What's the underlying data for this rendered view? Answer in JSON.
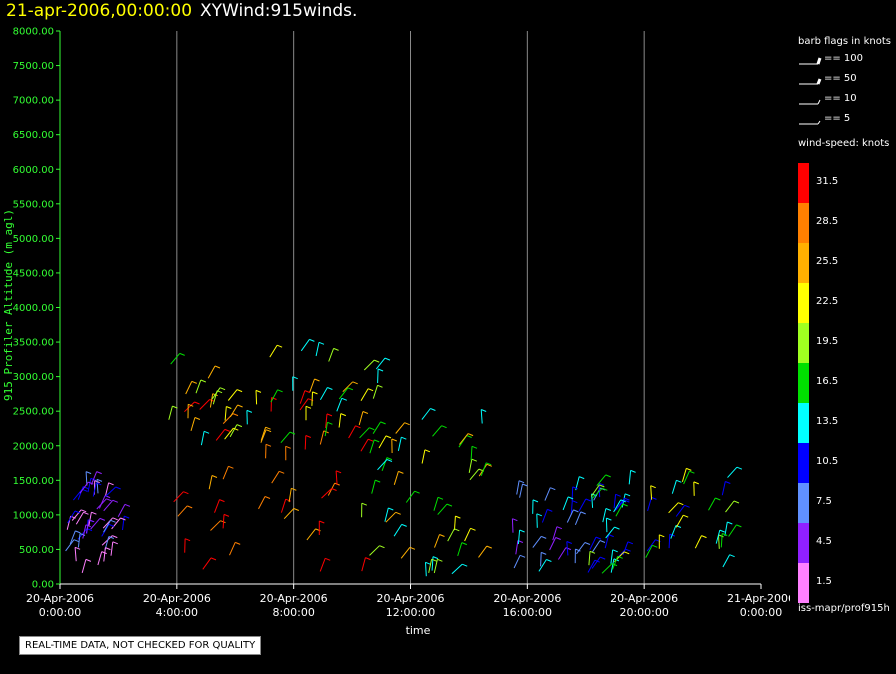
{
  "header": {
    "date": "21-apr-2006,00:00:00",
    "title": "XYWind:915winds."
  },
  "chart_data": {
    "type": "scatter",
    "subtype": "wind-barb time-height plot",
    "title": "XYWind:915winds.",
    "xlabel": "time",
    "ylabel": "915 Profiler Altitude (m agl)",
    "x_range_hours": [
      0,
      24
    ],
    "ylim": [
      0,
      8000
    ],
    "y_ticks": [
      "0.00",
      "500.00",
      "1000.00",
      "1500.00",
      "2000.00",
      "2500.00",
      "3000.00",
      "3500.00",
      "4000.00",
      "4500.00",
      "5000.00",
      "5500.00",
      "6000.00",
      "6500.00",
      "7000.00",
      "7500.00",
      "8000.00"
    ],
    "x_ticks": [
      {
        "date": "20-Apr-2006",
        "time": "0:00:00",
        "hour": 0
      },
      {
        "date": "20-Apr-2006",
        "time": "4:00:00",
        "hour": 4
      },
      {
        "date": "20-Apr-2006",
        "time": "8:00:00",
        "hour": 8
      },
      {
        "date": "20-Apr-2006",
        "time": "12:00:00",
        "hour": 12
      },
      {
        "date": "20-Apr-2006",
        "time": "16:00:00",
        "hour": 16
      },
      {
        "date": "20-Apr-2006",
        "time": "20:00:00",
        "hour": 20
      },
      {
        "date": "21-Apr-2006",
        "time": "0:00:00",
        "hour": 24
      }
    ],
    "grid_vertical_hours": [
      4,
      8,
      12,
      16,
      20
    ],
    "regions": [
      {
        "name": "early-light",
        "hours": [
          0,
          2.2
        ],
        "alt": [
          150,
          1500
        ],
        "speeds": [
          4.5,
          7.5,
          1.5,
          10.5
        ]
      },
      {
        "name": "strong-core",
        "hours": [
          3.6,
          10.5
        ],
        "alt": [
          100,
          2800
        ],
        "speeds": [
          31.5,
          31.5,
          28.5,
          25.5
        ]
      },
      {
        "name": "core-top",
        "hours": [
          3.6,
          11
        ],
        "alt": [
          2000,
          3400
        ],
        "speeds": [
          22.5,
          19.5,
          16.5,
          13.5,
          25.5
        ]
      },
      {
        "name": "decay",
        "hours": [
          10.3,
          14.5
        ],
        "alt": [
          100,
          2400
        ],
        "speeds": [
          22.5,
          19.5,
          16.5,
          25.5,
          13.5
        ]
      },
      {
        "name": "evening-light",
        "hours": [
          15.5,
          19.5
        ],
        "alt": [
          150,
          1400
        ],
        "speeds": [
          7.5,
          4.5,
          10.5,
          13.5
        ]
      },
      {
        "name": "night-moderate",
        "hours": [
          18,
          23
        ],
        "alt": [
          100,
          1600
        ],
        "speeds": [
          19.5,
          16.5,
          13.5,
          22.5,
          10.5
        ]
      }
    ],
    "legend_position": "right"
  },
  "legend": {
    "barb_title": "barb flags in knots",
    "barbs": [
      {
        "label": "== 100"
      },
      {
        "label": "== 50"
      },
      {
        "label": "== 10"
      },
      {
        "label": "== 5"
      }
    ],
    "speed_title": "wind-speed: knots",
    "speed_bins": [
      {
        "label": "31.5",
        "color": "#ff0000"
      },
      {
        "label": "28.5",
        "color": "#ff8000"
      },
      {
        "label": "25.5",
        "color": "#ffb000"
      },
      {
        "label": "22.5",
        "color": "#ffff00"
      },
      {
        "label": "19.5",
        "color": "#a0ff20"
      },
      {
        "label": "16.5",
        "color": "#00e000"
      },
      {
        "label": "13.5",
        "color": "#00ffff"
      },
      {
        "label": "10.5",
        "color": "#0000ff"
      },
      {
        "label": "7.5",
        "color": "#6090ff"
      },
      {
        "label": "4.5",
        "color": "#9020ff"
      },
      {
        "label": "1.5",
        "color": "#ff80ff"
      }
    ]
  },
  "footer": {
    "source_id": "iss-mapr/prof915h",
    "quality_note": "REAL-TIME DATA, NOT CHECKED FOR QUALITY"
  }
}
